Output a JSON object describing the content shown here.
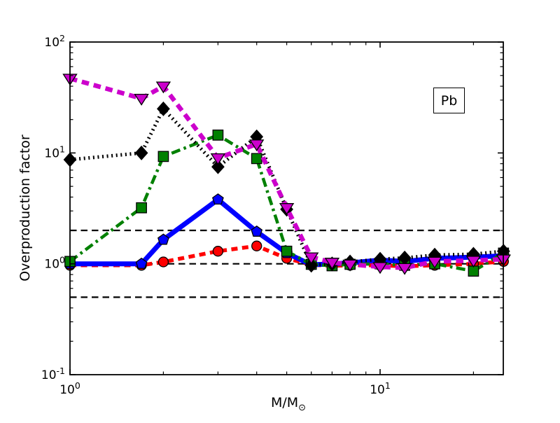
{
  "chart_data": {
    "type": "line",
    "title": "",
    "xlabel": "M/M⊙",
    "ylabel": "Overproduction factor",
    "annotation": "Pb",
    "xscale": "log",
    "yscale": "log",
    "xlim": [
      1,
      25.1
    ],
    "ylim": [
      0.1,
      100
    ],
    "x_major_ticks": [
      1,
      10
    ],
    "y_major_ticks": [
      0.1,
      1,
      10,
      100
    ],
    "reference_lines_y": [
      0.5,
      1.0,
      2.0
    ],
    "grid": "off",
    "legend": "none",
    "x": [
      1.0,
      1.7,
      2.0,
      3.0,
      4.0,
      5.0,
      6.0,
      7.0,
      8.0,
      10.0,
      12.0,
      15.0,
      20.0,
      25.0
    ],
    "series": [
      {
        "name": "red-dashed-circles",
        "color": "#ff0000",
        "linestyle": "dashed",
        "marker": "circle",
        "values": [
          0.97,
          0.97,
          1.04,
          1.3,
          1.45,
          1.12,
          0.98,
          0.96,
          0.97,
          0.97,
          0.95,
          0.97,
          1.0,
          1.05
        ]
      },
      {
        "name": "blue-solid-pentagons",
        "color": "#0000ff",
        "linestyle": "solid",
        "marker": "pentagon",
        "values": [
          1.0,
          1.0,
          1.65,
          3.8,
          1.95,
          1.25,
          0.98,
          1.0,
          1.02,
          1.08,
          1.05,
          1.12,
          1.15,
          1.18
        ]
      },
      {
        "name": "green-dashdot-squares",
        "color": "#008000",
        "linestyle": "dashdot",
        "marker": "square",
        "values": [
          1.05,
          3.2,
          9.3,
          14.5,
          8.9,
          1.3,
          0.99,
          0.96,
          0.99,
          1.0,
          0.97,
          1.0,
          0.86,
          1.25
        ]
      },
      {
        "name": "black-dotted-diamonds",
        "color": "#000000",
        "linestyle": "dotted",
        "marker": "diamond",
        "values": [
          8.7,
          10.0,
          25.0,
          7.5,
          14.0,
          3.1,
          0.97,
          1.0,
          1.04,
          1.1,
          1.13,
          1.2,
          1.22,
          1.3
        ]
      },
      {
        "name": "magenta-dashed-triangles",
        "color": "#cc00cc",
        "linestyle": "dashed-thick",
        "marker": "triangle-down",
        "values": [
          47.0,
          31.0,
          40.0,
          9.0,
          12.0,
          3.2,
          1.15,
          1.03,
          0.99,
          0.94,
          0.92,
          1.05,
          1.07,
          1.1
        ]
      }
    ]
  }
}
